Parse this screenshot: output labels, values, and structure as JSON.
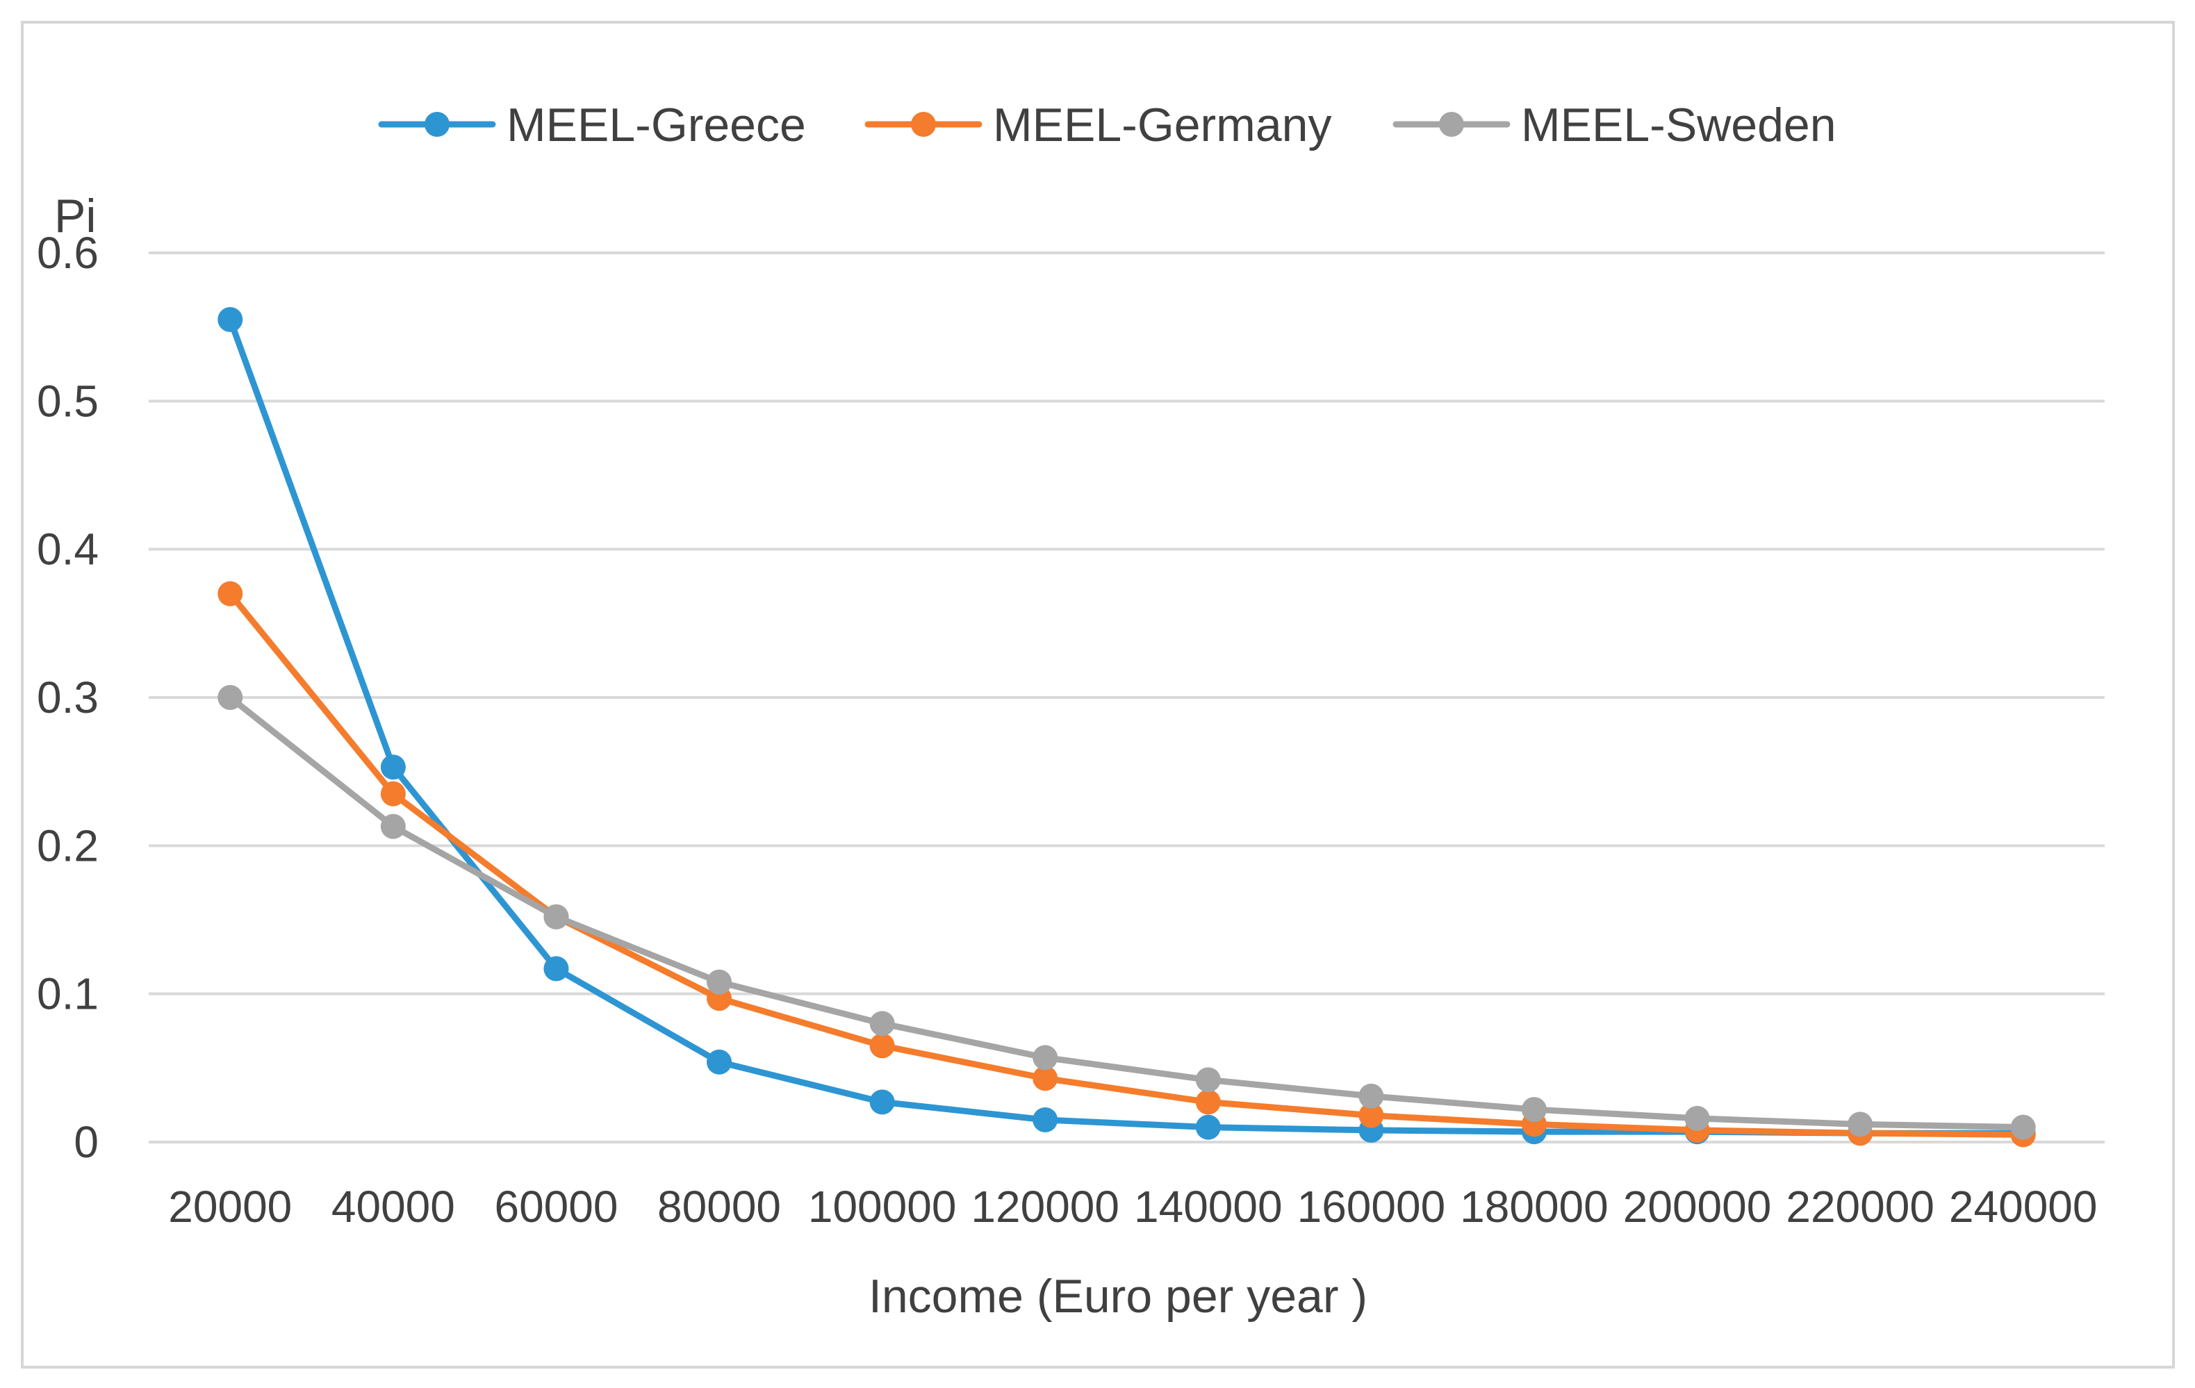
{
  "chart_data": {
    "type": "line",
    "title": "",
    "xlabel": "Income (Euro per year )",
    "ylabel": "Pi",
    "categories": [
      "20000",
      "40000",
      "60000",
      "80000",
      "100000",
      "120000",
      "140000",
      "160000",
      "180000",
      "200000",
      "220000",
      "240000"
    ],
    "y_ticks": [
      "0",
      "0.1",
      "0.2",
      "0.3",
      "0.4",
      "0.5",
      "0.6"
    ],
    "ylim": [
      0,
      0.6
    ],
    "grid": true,
    "legend_position": "top",
    "series": [
      {
        "name": "MEEL-Greece",
        "color": "#2e95d3",
        "values": [
          0.555,
          0.253,
          0.117,
          0.054,
          0.027,
          0.015,
          0.01,
          0.008,
          0.007,
          0.007,
          0.006,
          0.006
        ]
      },
      {
        "name": "MEEL-Germany",
        "color": "#f47c2c",
        "values": [
          0.37,
          0.235,
          0.152,
          0.097,
          0.065,
          0.043,
          0.027,
          0.018,
          0.012,
          0.008,
          0.006,
          0.005
        ]
      },
      {
        "name": "MEEL-Sweden",
        "color": "#a5a5a5",
        "values": [
          0.3,
          0.213,
          0.152,
          0.108,
          0.08,
          0.057,
          0.042,
          0.031,
          0.022,
          0.016,
          0.012,
          0.01
        ]
      }
    ]
  }
}
